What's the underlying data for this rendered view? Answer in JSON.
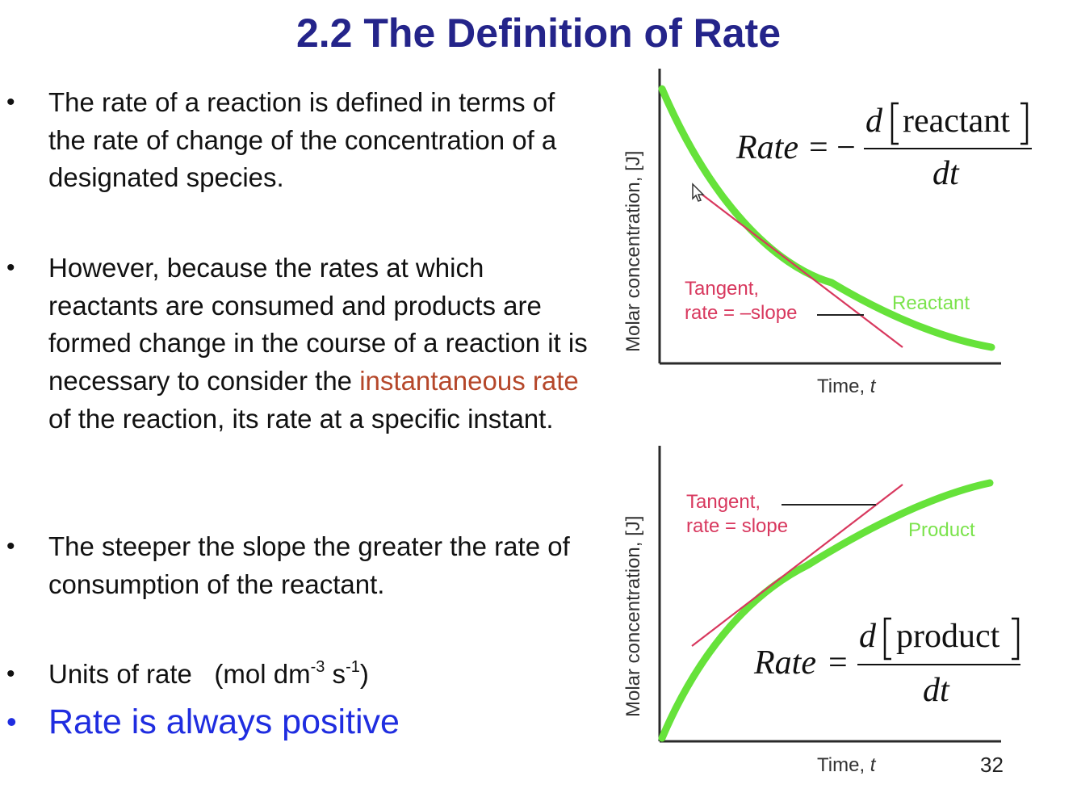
{
  "slide": {
    "title": "2.2  The Definition of Rate",
    "page_number": "32"
  },
  "bullets": [
    {
      "text": "The rate of a reaction is defined in terms of the rate of change of the concentration of a designated species."
    },
    {
      "before": "However, because the rates at which reactants are consumed and products are formed change in the course of a reaction it is necessary to consider the ",
      "highlight": "instantaneous rate",
      "after": " of the reaction, its rate at a specific instant."
    },
    {
      "text": "The steeper the slope the greater the rate of consumption of the reactant."
    },
    {
      "prefix": "Units of rate   (mol dm",
      "exp1": "-3",
      "mid": " s",
      "exp2": "-1",
      "suffix": ")"
    },
    {
      "text": "Rate is always positive"
    }
  ],
  "bullet_symbol": "•",
  "graph_reactant": {
    "ylabel": "Molar concentration, [J]",
    "xlabel_text": "Time, ",
    "xlabel_var": "t",
    "tangent_line1": "Tangent,",
    "tangent_line2": "rate = –slope",
    "curve_label": "Reactant",
    "equation": {
      "lhs": "Rate",
      "equals": "= −",
      "d": "d",
      "species": "reactant",
      "den": "dt"
    }
  },
  "graph_product": {
    "ylabel": "Molar concentration, [J]",
    "xlabel_text": "Time, ",
    "xlabel_var": "t",
    "tangent_line1": "Tangent,",
    "tangent_line2": "rate = slope",
    "curve_label": "Product",
    "equation": {
      "lhs": "Rate",
      "equals": "=",
      "d": "d",
      "species": "product",
      "den": "dt"
    }
  },
  "colors": {
    "title": "#24248a",
    "highlight": "#b5472a",
    "emphasis": "#1f2de0",
    "curve": "#66e23a",
    "tangent": "#d8385e"
  }
}
